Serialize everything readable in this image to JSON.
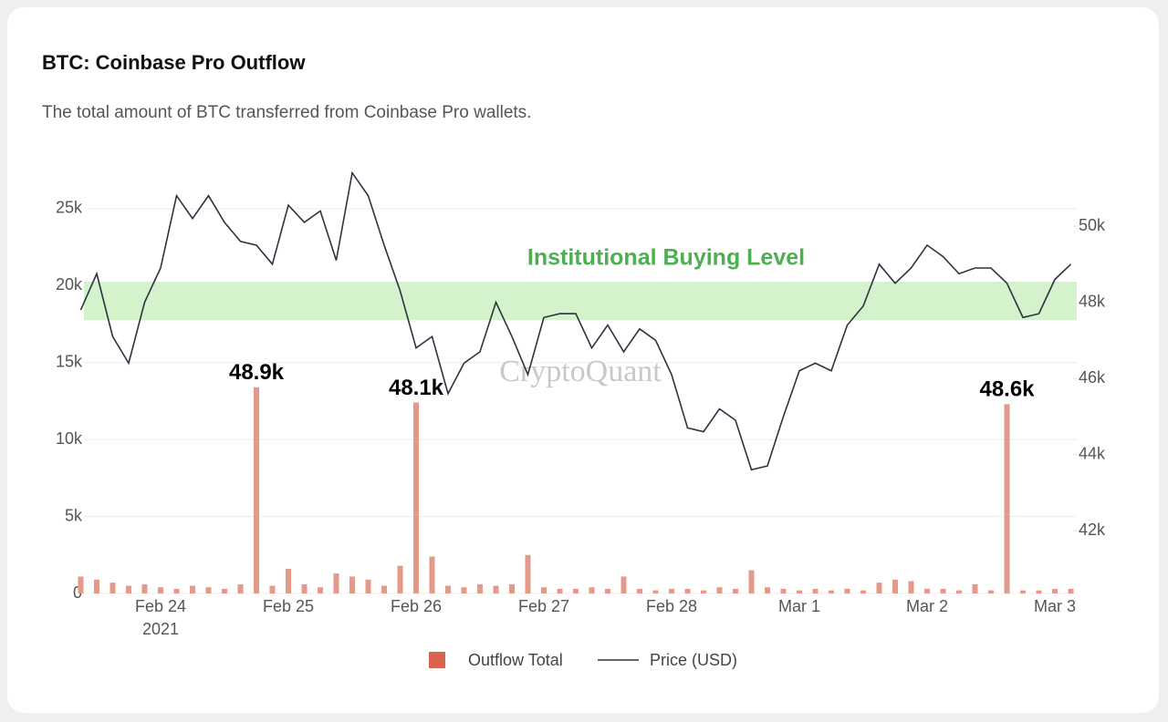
{
  "chart_data": {
    "type": "bar_line",
    "title": "BTC: Coinbase Pro Outflow",
    "subtitle": "The total amount of BTC transferred from Coinbase Pro wallets.",
    "watermark": "CryptoQuant",
    "categories": [
      null,
      null,
      null,
      null,
      null,
      "Feb 24",
      null,
      null,
      null,
      null,
      null,
      null,
      null,
      "Feb 25",
      null,
      null,
      null,
      null,
      null,
      null,
      null,
      "Feb 26",
      null,
      null,
      null,
      null,
      null,
      null,
      null,
      "Feb 27",
      null,
      null,
      null,
      null,
      null,
      null,
      null,
      "Feb 28",
      null,
      null,
      null,
      null,
      null,
      null,
      null,
      "Mar 1",
      null,
      null,
      null,
      null,
      null,
      null,
      null,
      "Mar 2",
      null,
      null,
      null,
      null,
      null,
      null,
      null,
      "Mar 3",
      null
    ],
    "year_label": "2021",
    "series": [
      {
        "name": "Outflow Total",
        "color": "#e39a8a",
        "legend_color": "#d9634c",
        "values": [
          1100,
          900,
          700,
          500,
          600,
          400,
          300,
          500,
          400,
          300,
          600,
          13400,
          500,
          1600,
          600,
          400,
          1300,
          1100,
          900,
          500,
          1800,
          12400,
          2400,
          500,
          400,
          600,
          500,
          600,
          2500,
          400,
          300,
          300,
          400,
          300,
          1100,
          300,
          200,
          300,
          300,
          200,
          400,
          300,
          1500,
          400,
          300,
          200,
          300,
          200,
          300,
          200,
          700,
          900,
          800,
          300,
          300,
          200,
          600,
          200,
          12300,
          200,
          200,
          300,
          300
        ]
      },
      {
        "name": "Price (USD)",
        "color": "#2b3440",
        "axis": "y2",
        "values": [
          47800,
          48750,
          47100,
          46400,
          48000,
          48900,
          50800,
          50200,
          50800,
          50100,
          49600,
          49500,
          49000,
          50550,
          50100,
          50400,
          49100,
          51400,
          50800,
          49500,
          48300,
          46800,
          47100,
          45600,
          46400,
          46700,
          48000,
          47100,
          46100,
          47600,
          47700,
          47700,
          46800,
          47400,
          46700,
          47300,
          47000,
          46100,
          44700,
          44600,
          45200,
          44900,
          43600,
          43700,
          45000,
          46200,
          46400,
          46200,
          47400,
          47900,
          49000,
          48500,
          48900,
          49500,
          49200,
          48750,
          48900,
          48900,
          48500,
          47600,
          47700,
          48600,
          49000
        ]
      }
    ],
    "ylim": [
      0,
      27900
    ],
    "yticks": [
      0,
      {
        "value": 5000,
        "label": "5k"
      },
      {
        "value": 10000,
        "label": "10k"
      },
      {
        "value": 15000,
        "label": "15k"
      },
      {
        "value": 20000,
        "label": "20k"
      },
      {
        "value": 25000,
        "label": "25k"
      }
    ],
    "y2lim": [
      40350,
      51630
    ],
    "y2ticks": [
      {
        "value": 42000,
        "label": "42k"
      },
      {
        "value": 44000,
        "label": "44k"
      },
      {
        "value": 46000,
        "label": "46k"
      },
      {
        "value": 48000,
        "label": "48k"
      },
      {
        "value": 50000,
        "label": "50k"
      }
    ],
    "band": {
      "label": "Institutional Buying Level",
      "range": [
        47530,
        48540
      ],
      "axis": "y2",
      "color": "#d4f2cc",
      "label_color": "#4caf50"
    },
    "annotations": [
      {
        "text": "48.9k",
        "index": 11
      },
      {
        "text": "48.1k",
        "index": 21
      },
      {
        "text": "48.6k",
        "index": 58
      }
    ],
    "grid": true
  }
}
